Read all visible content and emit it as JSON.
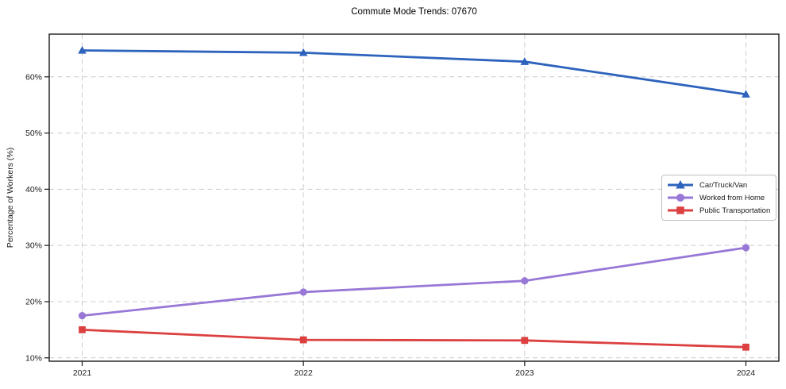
{
  "title": "Commute Mode Trends: 07670",
  "ui": {
    "legend_entries": [
      "Car/Truck/Van",
      "Worked from Home",
      "Public Transportation"
    ]
  },
  "chart_data": {
    "type": "line",
    "title": "Commute Mode Trends: 07670",
    "xlabel": "",
    "ylabel": "Percentage of Workers (%)",
    "categories": [
      "2021",
      "2022",
      "2023",
      "2024"
    ],
    "series": [
      {
        "name": "Car/Truck/Van",
        "values": [
          64.7,
          64.3,
          62.7,
          56.9
        ],
        "color": "#2d63bd",
        "marker": "triangle"
      },
      {
        "name": "Worked from Home",
        "values": [
          17.5,
          21.7,
          23.7,
          29.6
        ],
        "color": "#9877d6",
        "marker": "circle"
      },
      {
        "name": "Public Transportation",
        "values": [
          15.0,
          13.2,
          13.1,
          11.9
        ],
        "color": "#dc4040",
        "marker": "square"
      }
    ],
    "y_ticks": [
      "10%",
      "20%",
      "30%",
      "40%",
      "50%",
      "60%"
    ],
    "y_tick_values": [
      10,
      20,
      30,
      40,
      50,
      60
    ],
    "ylim": [
      9.4,
      67.6
    ],
    "grid": "dashed-both-axes",
    "grid_color": "#cccccc",
    "axis_color": "#1a1a1a",
    "legend_position": "right-middle"
  }
}
